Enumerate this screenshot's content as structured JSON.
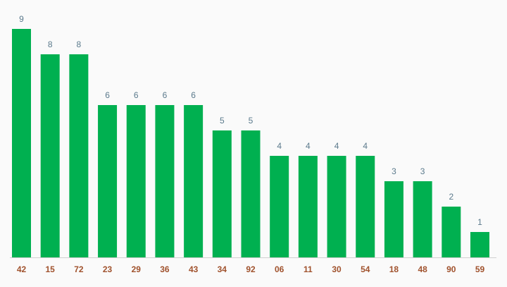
{
  "chart_data": {
    "type": "bar",
    "categories": [
      "42",
      "15",
      "72",
      "23",
      "29",
      "36",
      "43",
      "34",
      "92",
      "06",
      "11",
      "30",
      "54",
      "18",
      "48",
      "90",
      "59"
    ],
    "values": [
      9,
      8,
      8,
      6,
      6,
      6,
      6,
      5,
      5,
      4,
      4,
      4,
      4,
      3,
      3,
      2,
      1
    ],
    "color": "#00b050"
  }
}
